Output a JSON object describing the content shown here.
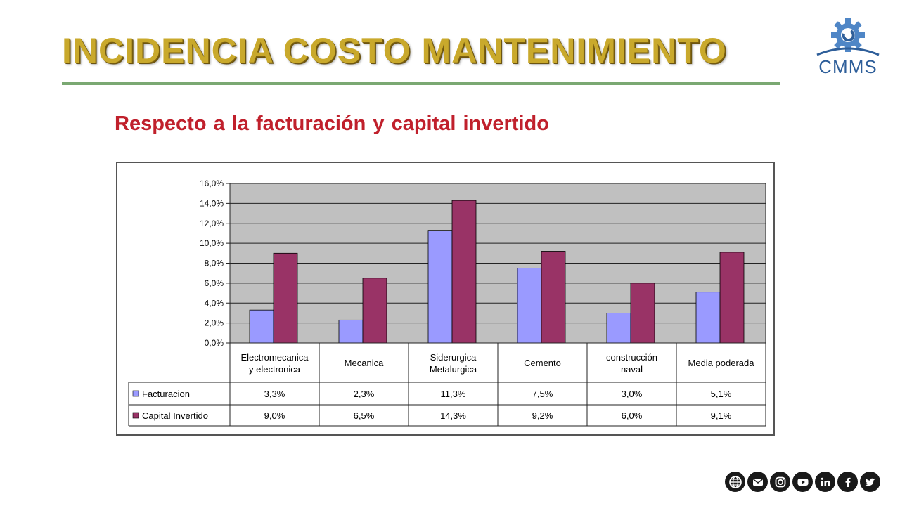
{
  "slide": {
    "title": "INCIDENCIA COSTO MANTENIMIENTO",
    "subtitle": "Respecto a la facturación y capital invertido",
    "logo_text": "CMMS"
  },
  "colors": {
    "title": "#c9a92c",
    "subtitle": "#c0202c",
    "rule": "#7aa872",
    "facturacion": "#9a9aff",
    "capital": "#993366",
    "plot_bg": "#c0c0c0",
    "logo": "#2f5f9a"
  },
  "social_icons": [
    "globe-icon",
    "email-icon",
    "instagram-icon",
    "youtube-icon",
    "linkedin-icon",
    "facebook-icon",
    "twitter-icon"
  ],
  "chart_data": {
    "type": "bar",
    "categories": [
      [
        "Electromecanica",
        "y electronica"
      ],
      [
        "Mecanica"
      ],
      [
        "Siderurgica",
        "Metalurgica"
      ],
      [
        "Cemento"
      ],
      [
        "construcción",
        "naval"
      ],
      [
        "Media poderada"
      ]
    ],
    "series": [
      {
        "name": "Facturacion",
        "values": [
          3.3,
          2.3,
          11.3,
          7.5,
          3.0,
          5.1
        ],
        "labels": [
          "3,3%",
          "2,3%",
          "11,3%",
          "7,5%",
          "3,0%",
          "5,1%"
        ],
        "color": "#9a9aff"
      },
      {
        "name": "Capital Invertido",
        "values": [
          9.0,
          6.5,
          14.3,
          9.2,
          6.0,
          9.1
        ],
        "labels": [
          "9,0%",
          "6,5%",
          "14,3%",
          "9,2%",
          "6,0%",
          "9,1%"
        ],
        "color": "#993366"
      }
    ],
    "ylim": [
      0,
      16
    ],
    "yticks": [
      0,
      2,
      4,
      6,
      8,
      10,
      12,
      14,
      16
    ],
    "ytick_labels": [
      "0,0%",
      "2,0%",
      "4,0%",
      "6,0%",
      "8,0%",
      "10,0%",
      "12,0%",
      "14,0%",
      "16,0%"
    ],
    "grid": true,
    "data_table": true
  }
}
